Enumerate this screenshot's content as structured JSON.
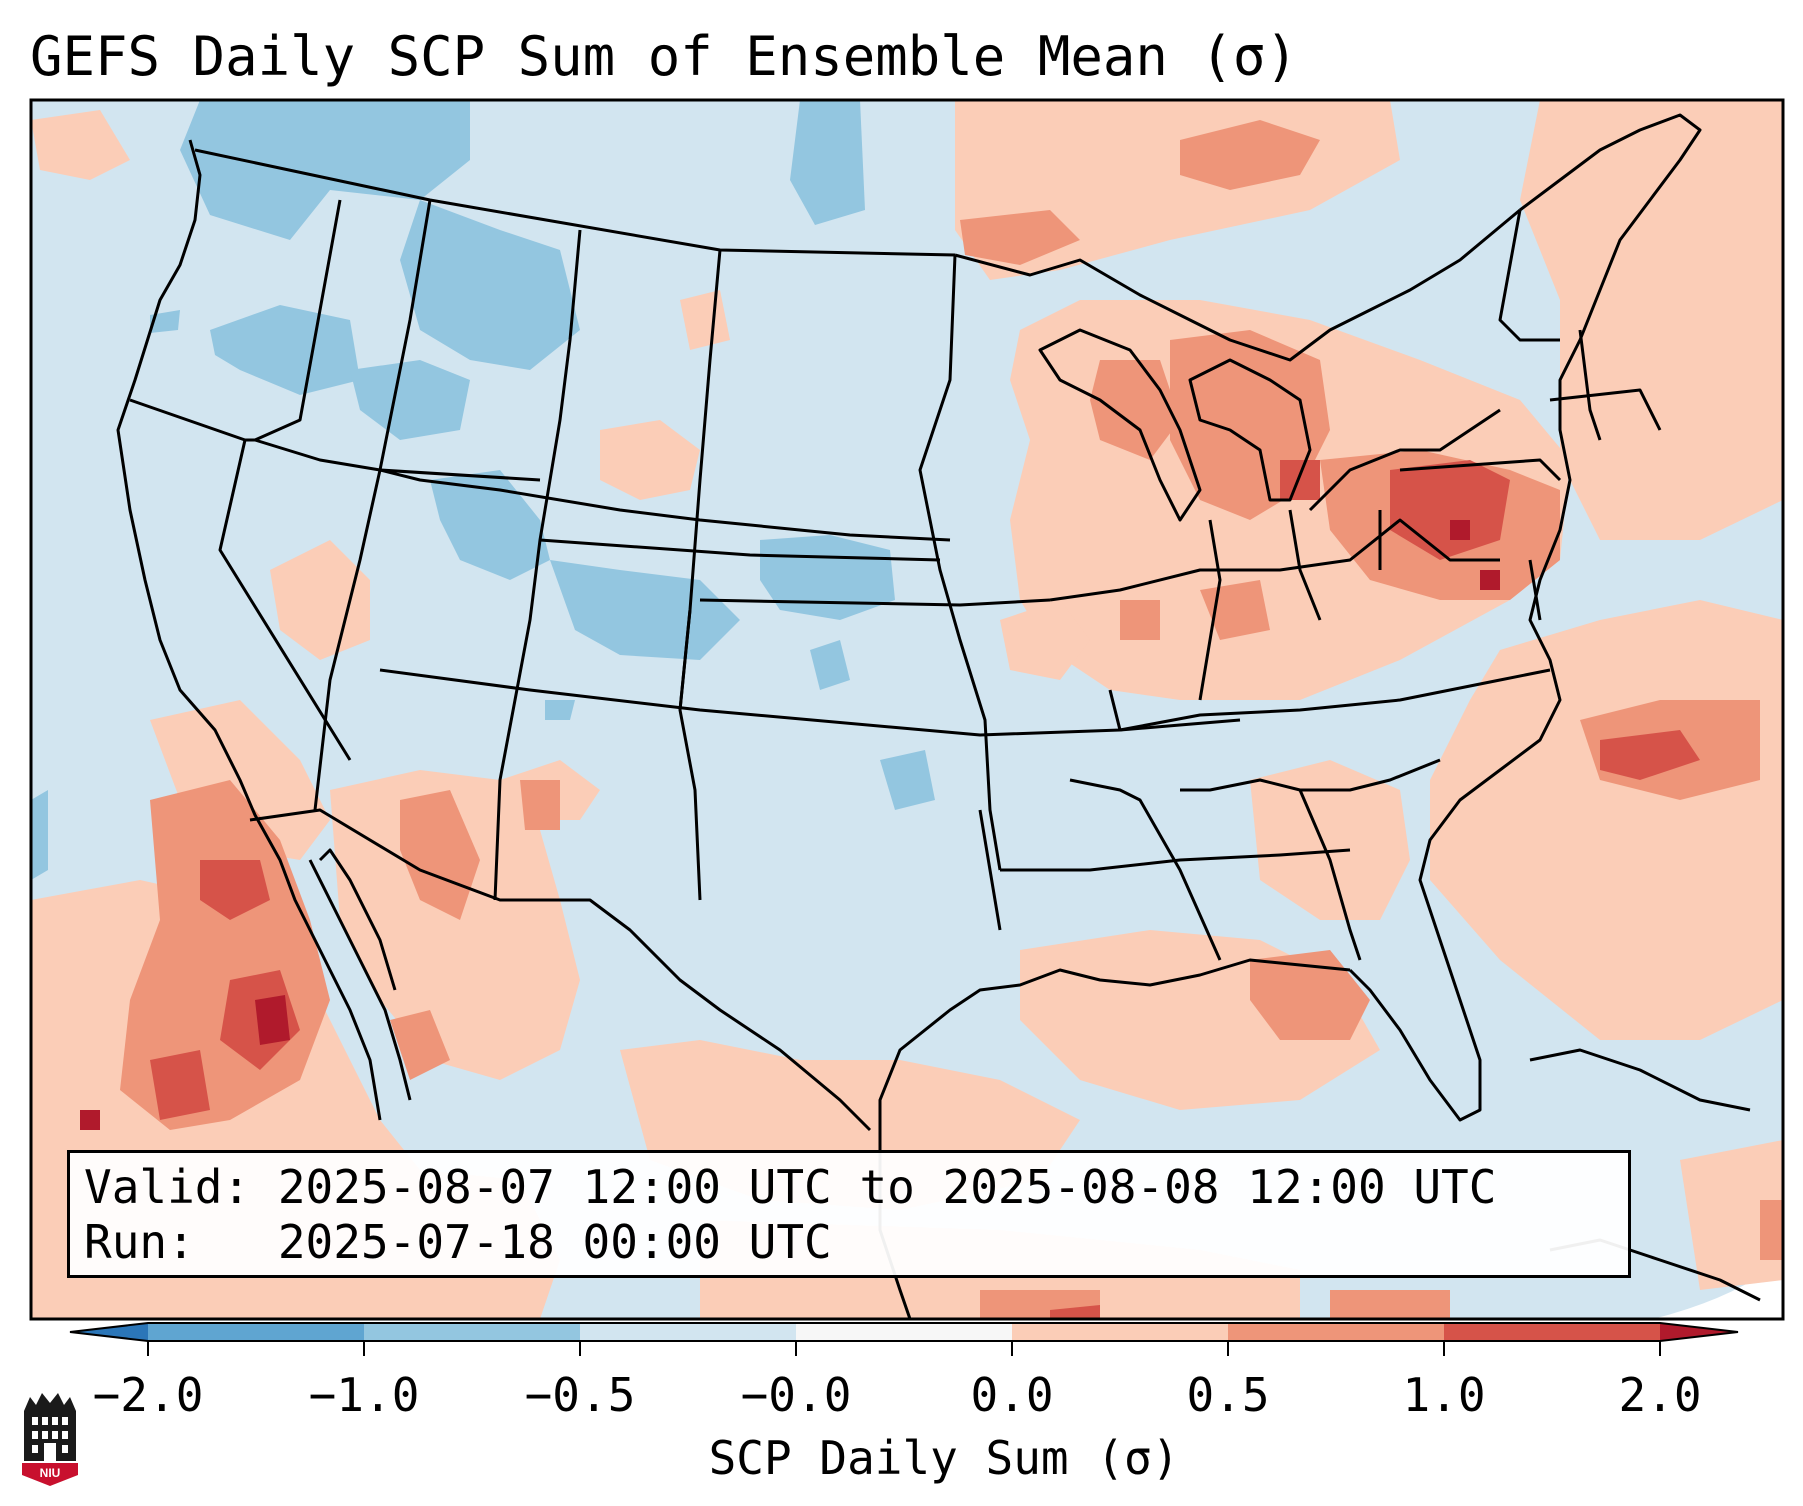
{
  "title": "GEFS Daily SCP Sum of Ensemble Mean (σ)",
  "info": {
    "valid": "Valid: 2025-08-07 12:00 UTC to 2025-08-08 12:00 UTC",
    "run": "Run:   2025-07-18 00:00 UTC"
  },
  "colorbar": {
    "label": "SCP Daily Sum (σ)",
    "ticks": [
      "−2.0",
      "−1.0",
      "−0.5",
      "−0.0",
      "0.0",
      "0.5",
      "1.0",
      "2.0"
    ],
    "colors": [
      "#2b76b8",
      "#5fa5d1",
      "#93c6e0",
      "#d2e5f0",
      "#f7f7f7",
      "#fbcdb7",
      "#ee9579",
      "#d65349",
      "#b01a2c"
    ],
    "extend": "both"
  },
  "logo": {
    "text": "NIU",
    "colors": {
      "red": "#c8102e",
      "black": "#1a1a1a"
    }
  },
  "map": {
    "projection": "Lambert conformal, CONUS",
    "colors": {
      "ocean": "#d2e5f0",
      "land_outline": "#000000"
    }
  }
}
